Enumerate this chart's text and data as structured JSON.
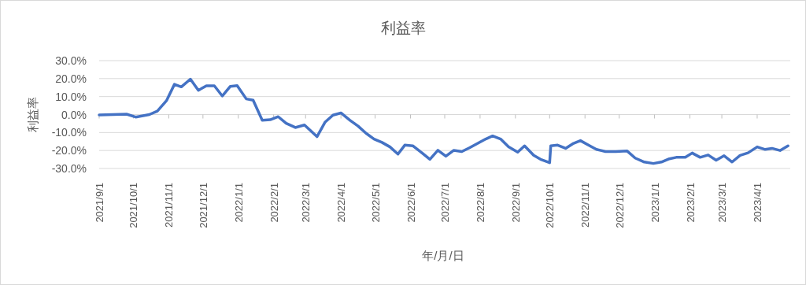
{
  "chart_data": {
    "type": "line",
    "title": "利益率",
    "xlabel": "年/月/日",
    "ylabel": "利益率",
    "x": [
      "2021-09-01",
      "2021-09-25",
      "2021-10-03",
      "2021-10-15",
      "2021-10-22",
      "2021-10-30",
      "2021-11-06",
      "2021-11-12",
      "2021-11-20",
      "2021-11-27",
      "2021-12-04",
      "2021-12-11",
      "2021-12-18",
      "2021-12-25",
      "2021-12-31",
      "2022-01-08",
      "2022-01-14",
      "2022-01-22",
      "2022-01-29",
      "2022-02-05",
      "2022-02-12",
      "2022-02-20",
      "2022-02-28",
      "2022-03-11",
      "2022-03-18",
      "2022-03-25",
      "2022-04-01",
      "2022-04-09",
      "2022-04-16",
      "2022-04-23",
      "2022-04-30",
      "2022-05-07",
      "2022-05-14",
      "2022-05-21",
      "2022-05-27",
      "2022-06-03",
      "2022-06-11",
      "2022-06-18",
      "2022-06-25",
      "2022-07-02",
      "2022-07-09",
      "2022-07-16",
      "2022-07-23",
      "2022-07-30",
      "2022-08-06",
      "2022-08-12",
      "2022-08-19",
      "2022-08-26",
      "2022-09-03",
      "2022-09-09",
      "2022-09-17",
      "2022-09-23",
      "2022-10-01",
      "2022-10-02",
      "2022-10-08",
      "2022-10-15",
      "2022-10-22",
      "2022-10-28",
      "2022-11-04",
      "2022-11-11",
      "2022-11-19",
      "2022-11-28",
      "2022-12-08",
      "2022-12-15",
      "2022-12-23",
      "2022-12-31",
      "2023-01-07",
      "2023-01-14",
      "2023-01-20",
      "2023-01-28",
      "2023-02-03",
      "2023-02-10",
      "2023-02-17",
      "2023-02-24",
      "2023-03-03",
      "2023-03-10",
      "2023-03-17",
      "2023-03-24",
      "2023-04-01",
      "2023-04-08",
      "2023-04-14",
      "2023-04-21",
      "2023-04-28"
    ],
    "series": [
      {
        "color": "#4472c4",
        "values": [
          -0.2,
          0.2,
          -1.4,
          0,
          1.9,
          7.7,
          16.8,
          15.4,
          19.7,
          13.5,
          16,
          16,
          10.3,
          15.7,
          16.1,
          8.7,
          8,
          -3.2,
          -2.9,
          -1.2,
          -4.9,
          -7.2,
          -5.8,
          -12.3,
          -4.3,
          -0.3,
          0.9,
          -3.2,
          -6.4,
          -10.4,
          -13.6,
          -15.5,
          -18,
          -22,
          -17,
          -17.4,
          -21.3,
          -24.9,
          -19.9,
          -23.2,
          -19.9,
          -20.6,
          -18.4,
          -16,
          -13.6,
          -11.9,
          -13.6,
          -18,
          -20.9,
          -17.4,
          -22.7,
          -24.9,
          -26.8,
          -17.4,
          -17,
          -18.8,
          -16,
          -14.5,
          -17,
          -19.4,
          -20.6,
          -20.6,
          -20.3,
          -24.2,
          -26.4,
          -27.2,
          -26.4,
          -24.6,
          -23.8,
          -23.8,
          -21.4,
          -23.8,
          -22.5,
          -25.4,
          -22.9,
          -26.4,
          -22.7,
          -21.3,
          -18,
          -19.4,
          -18.8,
          -20,
          -17.4
        ]
      }
    ],
    "xlim": [
      "2021-09-01",
      "2023-04-30"
    ],
    "xticks": [
      {
        "value": "2021-09-01",
        "label": "2021/9/1"
      },
      {
        "value": "2021-10-01",
        "label": "2021/10/1"
      },
      {
        "value": "2021-11-01",
        "label": "2021/11/1"
      },
      {
        "value": "2021-12-01",
        "label": "2021/12/1"
      },
      {
        "value": "2022-01-01",
        "label": "2022/1/1"
      },
      {
        "value": "2022-02-01",
        "label": "2022/2/1"
      },
      {
        "value": "2022-03-01",
        "label": "2022/3/1"
      },
      {
        "value": "2022-04-01",
        "label": "2022/4/1"
      },
      {
        "value": "2022-05-01",
        "label": "2022/5/1"
      },
      {
        "value": "2022-06-01",
        "label": "2022/6/1"
      },
      {
        "value": "2022-07-01",
        "label": "2022/7/1"
      },
      {
        "value": "2022-08-01",
        "label": "2022/8/1"
      },
      {
        "value": "2022-09-01",
        "label": "2022/9/1"
      },
      {
        "value": "2022-10-01",
        "label": "2022/10/1"
      },
      {
        "value": "2022-11-01",
        "label": "2022/11/1"
      },
      {
        "value": "2022-12-01",
        "label": "2022/12/1"
      },
      {
        "value": "2023-01-01",
        "label": "2023/1/1"
      },
      {
        "value": "2023-02-01",
        "label": "2023/2/1"
      },
      {
        "value": "2023-03-01",
        "label": "2023/3/1"
      },
      {
        "value": "2023-04-01",
        "label": "2023/4/1"
      }
    ],
    "ylim": [
      -30,
      30
    ],
    "yticks": [
      {
        "value": 30,
        "label": "30.0%"
      },
      {
        "value": 20,
        "label": "20.0%"
      },
      {
        "value": 10,
        "label": "10.0%"
      },
      {
        "value": 0,
        "label": "0.0%"
      },
      {
        "value": -10,
        "label": "-10.0%"
      },
      {
        "value": -20,
        "label": "-20.0%"
      },
      {
        "value": -30,
        "label": "-30.0%"
      }
    ],
    "grid": "y",
    "line_style": "solid"
  }
}
